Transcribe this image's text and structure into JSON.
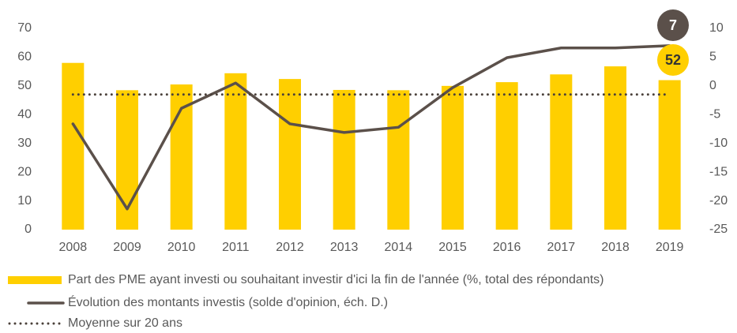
{
  "chart_data": {
    "type": "bar",
    "categories": [
      "2008",
      "2009",
      "2010",
      "2011",
      "2012",
      "2013",
      "2014",
      "2015",
      "2016",
      "2017",
      "2018",
      "2019"
    ],
    "series": [
      {
        "name": "Part des PME ayant investi ou souhaitant investir d'ici la fin de l'année (%, total des répondants)",
        "color": "#ffcf00",
        "type": "bar",
        "values": [
          58,
          48.5,
          50.5,
          54.4,
          52.4,
          48.6,
          48.5,
          50,
          51.3,
          54,
          56.8,
          52
        ]
      },
      {
        "name": "Évolution des montants investis (solde d'opinion, éch. D.)",
        "color": "#5b504a",
        "type": "line",
        "axis": "y2",
        "values": [
          -6.6,
          -21.4,
          -3.9,
          0.5,
          -6.6,
          -8.1,
          -7.2,
          -0.3,
          4.9,
          6.6,
          6.6,
          7
        ]
      },
      {
        "name": "Moyenne sur 20 ans",
        "color": "#4a403a",
        "type": "dotted",
        "axis": "y2",
        "values": [
          -1.5,
          -1.5,
          -1.5,
          -1.5,
          -1.5,
          -1.5,
          -1.5,
          -1.5,
          -1.5,
          -1.5,
          -1.5,
          -1.5
        ]
      }
    ],
    "ylim": [
      0,
      70
    ],
    "yticks": [
      0,
      10,
      20,
      30,
      40,
      50,
      60,
      70
    ],
    "y2lim": [
      -25,
      10
    ],
    "y2ticks": [
      -25,
      -20,
      -15,
      -10,
      -5,
      0,
      5,
      10
    ]
  }
}
